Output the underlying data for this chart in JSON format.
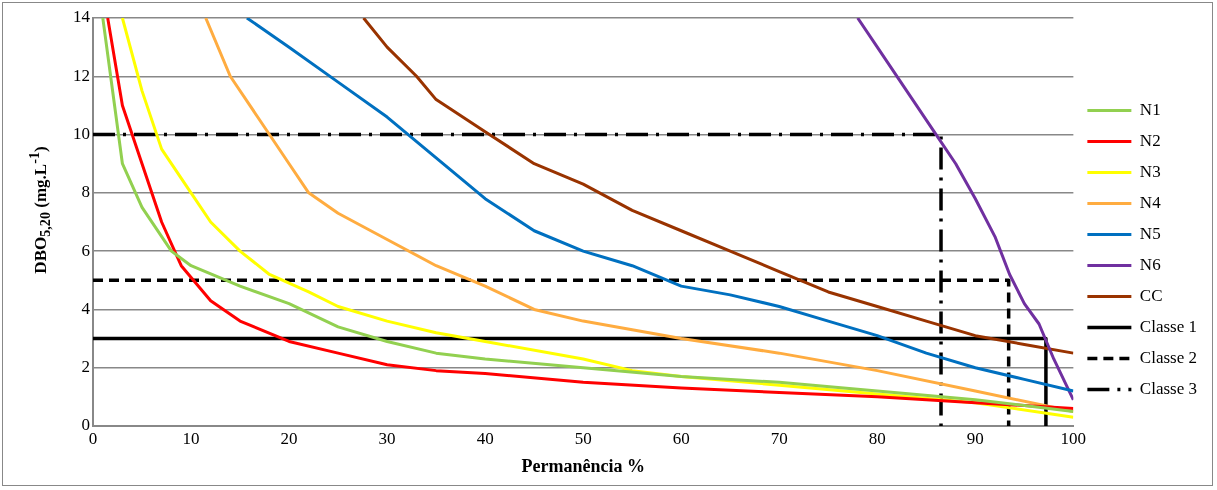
{
  "chart_data": {
    "type": "line",
    "xlabel": "Permanência %",
    "ylabel": "DBO$_{5,20}$ (mg.L$^{-1}$)",
    "xlim": [
      0,
      100
    ],
    "xticks": [
      0,
      10,
      20,
      30,
      40,
      50,
      60,
      70,
      80,
      90,
      100
    ],
    "ylim": [
      0,
      14
    ],
    "yticks": [
      0,
      2,
      4,
      6,
      8,
      10,
      12,
      14
    ],
    "grid": "y",
    "legend": "right",
    "marker": "none",
    "series": [
      {
        "name": "N1",
        "color": "#92d050",
        "x": [
          1,
          3,
          5,
          8,
          10,
          15,
          20,
          25,
          30,
          35,
          40,
          50,
          60,
          70,
          80,
          90,
          100
        ],
        "values": [
          14,
          9,
          7.5,
          6,
          5.5,
          4.8,
          4.2,
          3.4,
          2.9,
          2.5,
          2.3,
          2,
          1.7,
          1.5,
          1.2,
          0.9,
          0.5
        ]
      },
      {
        "name": "N2",
        "color": "#ff0000",
        "x": [
          1.5,
          3,
          5,
          7,
          9,
          12,
          15,
          20,
          25,
          30,
          35,
          40,
          50,
          60,
          70,
          80,
          90,
          100
        ],
        "values": [
          14,
          11,
          9,
          7,
          5.5,
          4.3,
          3.6,
          2.9,
          2.5,
          2.1,
          1.9,
          1.8,
          1.5,
          1.3,
          1.15,
          1,
          0.8,
          0.6
        ]
      },
      {
        "name": "N3",
        "color": "#ffff00",
        "x": [
          3,
          5,
          7,
          10,
          12,
          15,
          18,
          22,
          25,
          30,
          35,
          40,
          50,
          55,
          60,
          70,
          80,
          90,
          100
        ],
        "values": [
          14,
          11.5,
          9.5,
          8,
          7,
          6,
          5.2,
          4.6,
          4.1,
          3.6,
          3.2,
          2.9,
          2.3,
          1.9,
          1.7,
          1.4,
          1.1,
          0.8,
          0.3
        ]
      },
      {
        "name": "N4",
        "color": "#ffac40",
        "x": [
          11.5,
          14,
          17,
          20,
          22,
          25,
          30,
          35,
          40,
          45,
          50,
          55,
          60,
          70,
          80,
          90,
          100
        ],
        "values": [
          14,
          12,
          10.5,
          9,
          8,
          7.3,
          6.4,
          5.5,
          4.8,
          4,
          3.6,
          3.3,
          3,
          2.5,
          1.9,
          1.2,
          0.5
        ]
      },
      {
        "name": "N5",
        "color": "#0070c0",
        "x": [
          15.7,
          20,
          25,
          30,
          35,
          40,
          45,
          50,
          55,
          60,
          65,
          70,
          75,
          80,
          85,
          90,
          95,
          100
        ],
        "values": [
          14,
          13,
          11.8,
          10.6,
          9.2,
          7.8,
          6.7,
          6,
          5.5,
          4.8,
          4.5,
          4.1,
          3.6,
          3.1,
          2.5,
          2,
          1.6,
          1.2
        ]
      },
      {
        "name": "N6",
        "color": "#7030a0",
        "x": [
          78,
          80,
          83,
          86,
          88,
          90,
          92,
          93.5,
          95,
          96.5,
          98,
          100
        ],
        "values": [
          14,
          13,
          11.5,
          10,
          9,
          7.8,
          6.5,
          5.2,
          4.2,
          3.5,
          2.3,
          0.9
        ]
      },
      {
        "name": "CC",
        "color": "#993300",
        "x": [
          27.6,
          30,
          33,
          35,
          40,
          45,
          50,
          55,
          60,
          65,
          70,
          75,
          80,
          85,
          90,
          95,
          100
        ],
        "values": [
          14,
          13,
          12,
          11.2,
          10.1,
          9,
          8.3,
          7.4,
          6.7,
          6,
          5.3,
          4.6,
          4.1,
          3.6,
          3.1,
          2.8,
          2.5
        ]
      },
      {
        "name": "Classe 1",
        "color": "#000000",
        "line_style": "solid",
        "x": [
          0,
          97.2,
          97.2
        ],
        "values": [
          3,
          3,
          0
        ]
      },
      {
        "name": "Classe 2",
        "color": "#000000",
        "line_style": "dashed",
        "x": [
          0,
          93.4,
          93.4
        ],
        "values": [
          5,
          5,
          0
        ]
      },
      {
        "name": "Classe 3",
        "color": "#000000",
        "line_style": "dashdot",
        "x": [
          0,
          86.5,
          86.5
        ],
        "values": [
          10,
          10,
          0
        ]
      }
    ]
  }
}
